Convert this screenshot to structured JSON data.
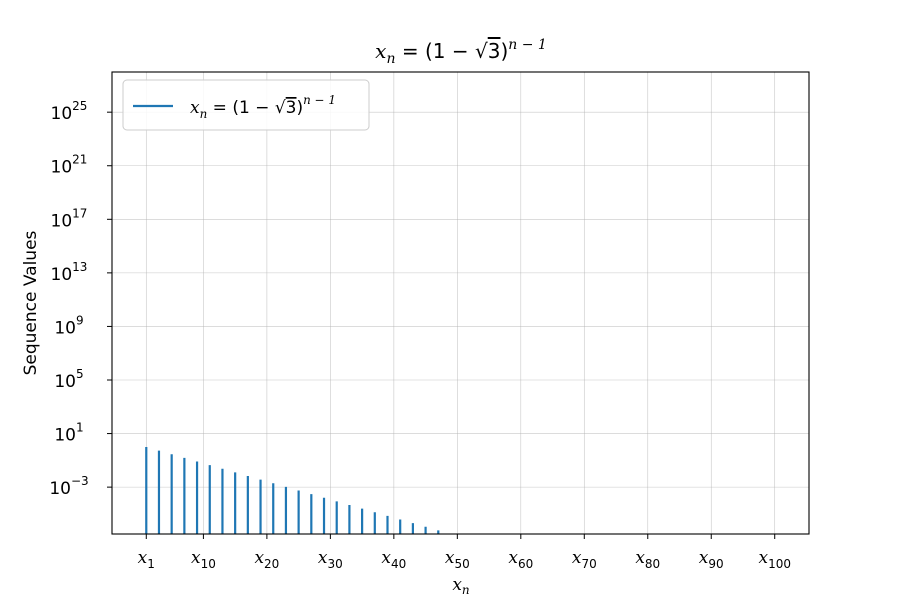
{
  "chart_data": {
    "type": "line",
    "title": "x_n = (1 − √3)^(n − 1)",
    "xlabel": "x_n",
    "ylabel": "Sequence Values",
    "yscale": "log",
    "grid": true,
    "legend_position": "top-left",
    "xlim": [
      -4.4,
      105.4
    ],
    "ylim_exp": [
      -6.5,
      28
    ],
    "x_tick_labels": [
      {
        "n": 1,
        "base": "x",
        "sub": "1"
      },
      {
        "n": 10,
        "base": "x",
        "sub": "10"
      },
      {
        "n": 20,
        "base": "x",
        "sub": "20"
      },
      {
        "n": 30,
        "base": "x",
        "sub": "30"
      },
      {
        "n": 40,
        "base": "x",
        "sub": "40"
      },
      {
        "n": 50,
        "base": "x",
        "sub": "50"
      },
      {
        "n": 60,
        "base": "x",
        "sub": "60"
      },
      {
        "n": 70,
        "base": "x",
        "sub": "70"
      },
      {
        "n": 80,
        "base": "x",
        "sub": "80"
      },
      {
        "n": 90,
        "base": "x",
        "sub": "90"
      },
      {
        "n": 100,
        "base": "x",
        "sub": "100"
      }
    ],
    "y_tick_labels": [
      {
        "exp": -3,
        "base": "10",
        "sup": "−3"
      },
      {
        "exp": 1,
        "base": "10",
        "sup": "1"
      },
      {
        "exp": 5,
        "base": "10",
        "sup": "5"
      },
      {
        "exp": 9,
        "base": "10",
        "sup": "9"
      },
      {
        "exp": 13,
        "base": "10",
        "sup": "13"
      },
      {
        "exp": 17,
        "base": "10",
        "sup": "17"
      },
      {
        "exp": 21,
        "base": "10",
        "sup": "21"
      },
      {
        "exp": 25,
        "base": "10",
        "sup": "25"
      }
    ],
    "series": [
      {
        "name": "x_n = (1 − √3)^(n − 1)",
        "color": "#1f77b4",
        "n_start": 1,
        "n_end": 100,
        "base": -0.7320508075688772
      }
    ]
  }
}
